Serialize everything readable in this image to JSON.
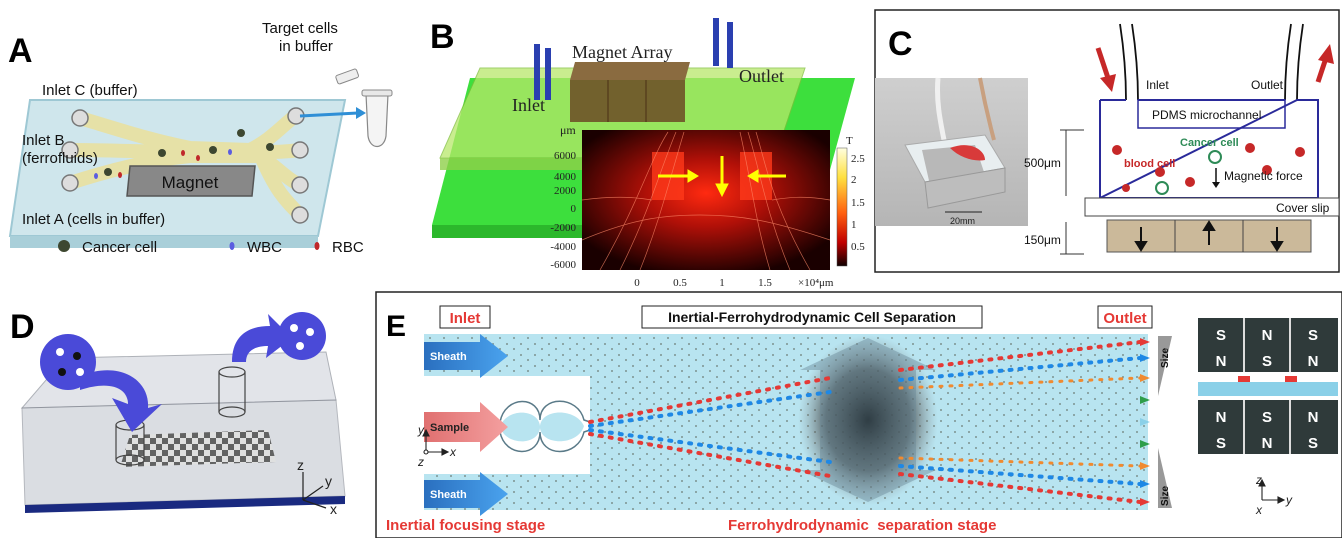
{
  "panels": {
    "a": {
      "letter": "A",
      "target": [
        "Target cells",
        "in buffer"
      ],
      "inlet_c": "Inlet C (buffer)",
      "inlet_b": [
        "Inlet B",
        "(ferrofluids)"
      ],
      "magnet": "Magnet",
      "inlet_a": "Inlet A (cells in buffer)",
      "legend": [
        "Cancer cell",
        "WBC",
        "RBC"
      ]
    },
    "b": {
      "letter": "B",
      "magnet_array": "Magnet Array",
      "inlet": "Inlet",
      "outlet": "Outlet",
      "unit_um": "μm",
      "unit_t": "T",
      "yticks": [
        "6000",
        "4000",
        "2000",
        "0",
        "-2000",
        "-4000",
        "-6000"
      ],
      "xticks": [
        "0",
        "0.5",
        "1",
        "1.5"
      ],
      "xunit": "×10⁴μm",
      "cticks": [
        "2.5",
        "2",
        "1.5",
        "1",
        "0.5"
      ]
    },
    "c": {
      "letter": "C",
      "scale": "20mm",
      "inlet": "Inlet",
      "outlet": "Outlet",
      "pdms": "PDMS microchannel",
      "cancer_cell": "Cancer cell",
      "blood_cell": "blood cell",
      "magnetic_force": "Magnetic force",
      "dim_500": "500μm",
      "cover_slip": "Cover slip",
      "dim_150": "150μm"
    },
    "d": {
      "letter": "D",
      "axes": [
        "z",
        "y",
        "x"
      ]
    },
    "e": {
      "letter": "E",
      "inlet": "Inlet",
      "title": "Inertial-Ferrohydrodynamic Cell Separation",
      "outlet": "Outlet",
      "sheath_top": "Sheath",
      "sample": "Sample",
      "sheath_bottom": "Sheath",
      "size": "Size",
      "axes_left": [
        "y",
        "x",
        "z"
      ],
      "stage_left": "Inertial focusing stage",
      "stage_right": "Ferrohydrodynamic  separation stage",
      "magnets_top": [
        "S",
        "N",
        "S",
        "N",
        "S",
        "N"
      ],
      "magnets_bottom": [
        "N",
        "S",
        "N",
        "S",
        "N",
        "S"
      ],
      "axes_right": [
        "z",
        "y",
        "x"
      ]
    }
  }
}
